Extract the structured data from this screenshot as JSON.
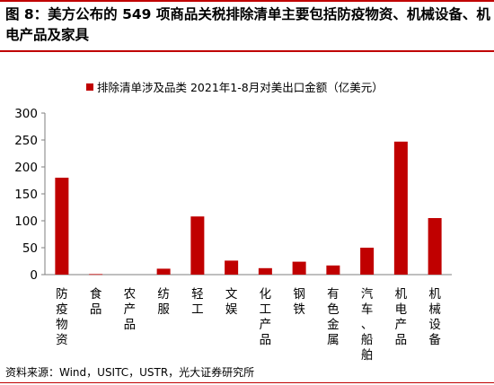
{
  "figure": {
    "title": "图 8：美方公布的 549 项商品关税排除清单主要包括防疫物资、机械设备、机电产品及家具",
    "source": "资料来源：Wind，USITC，USTR，光大证券研究所"
  },
  "chart_data": {
    "type": "bar",
    "title": "",
    "xlabel": "",
    "ylabel": "",
    "ylim": [
      0,
      300
    ],
    "yticks": [
      0,
      50,
      100,
      150,
      200,
      250,
      300
    ],
    "grid": false,
    "legend_position": "top-center",
    "categories": [
      "防疫物资",
      "食品",
      "农产品",
      "纺服",
      "轻工",
      "文娱",
      "化工产品",
      "钢铁",
      "有色金属",
      "汽车、船舶",
      "机电产品",
      "机械设备"
    ],
    "series": [
      {
        "name": "排除清单涉及品类 2021年1-8月对美出口金额（亿美元）",
        "color": "#c00000",
        "values": [
          180,
          1,
          0,
          11,
          108,
          26,
          12,
          24,
          17,
          50,
          247,
          105
        ]
      }
    ]
  }
}
